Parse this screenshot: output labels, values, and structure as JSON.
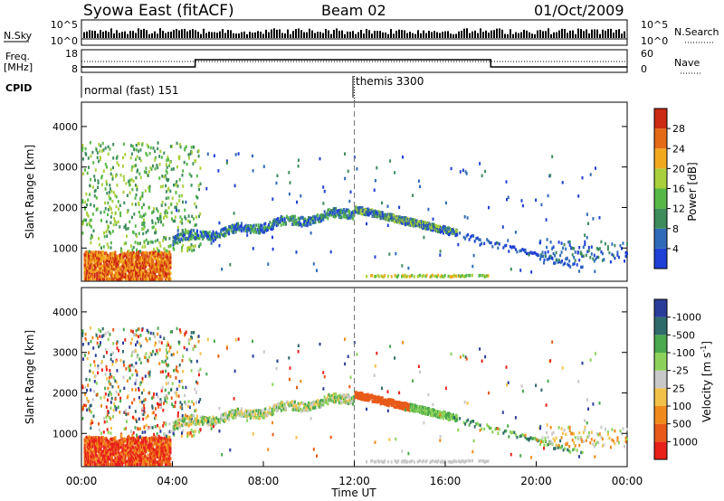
{
  "header": {
    "title": "Syowa East (fitACF)",
    "beam": "Beam 02",
    "date": "01/Oct/2009"
  },
  "strips": {
    "nsky_label": "N.Sky",
    "nsky_ticks": [
      "10^5",
      "10^0"
    ],
    "nsearch_label": "N.Search",
    "nsearch_ticks": [
      "10^5",
      "10^0"
    ],
    "freq_label_1": "Freq.",
    "freq_label_2": "[MHz]",
    "freq_ticks": [
      "18",
      "8"
    ],
    "nave_label": "Nave",
    "nave_ticks": [
      "60",
      "0"
    ],
    "cpid_label": "CPID",
    "cpid_modes": [
      "normal (fast) 151",
      "themis 3300"
    ]
  },
  "colors": {
    "power": [
      "#1f3fd6",
      "#2f6ab8",
      "#3c8c5c",
      "#57b848",
      "#a9cf3a",
      "#f2a91e",
      "#e46a16",
      "#cc2a12"
    ],
    "velocity": [
      "#e8201a",
      "#e85a18",
      "#f08a1a",
      "#f2c248",
      "#c8c8c8",
      "#8cd25a",
      "#4aa84e",
      "#2f6a6a",
      "#2a3c9a"
    ]
  },
  "chart_data": [
    {
      "type": "heatmap",
      "quantity": "Power",
      "ylabel": "Slant Range [km]",
      "yticks": [
        "1000",
        "2000",
        "3000",
        "4000"
      ],
      "ylim": [
        180,
        4600
      ],
      "xlim": [
        0,
        24
      ],
      "colorbar_label": "Power [dB]",
      "colorbar_ticks": [
        "4",
        "8",
        "12",
        "16",
        "20",
        "24",
        "28"
      ],
      "colorbar_range": [
        0,
        32
      ]
    },
    {
      "type": "heatmap",
      "quantity": "Velocity",
      "ylabel": "Slant Range [km]",
      "yticks": [
        "1000",
        "2000",
        "3000",
        "4000"
      ],
      "ylim": [
        180,
        4600
      ],
      "xlim": [
        0,
        24
      ],
      "colorbar_label": "Velocity [m s",
      "colorbar_exponent": "-1",
      "colorbar_unit_close": "]",
      "colorbar_ticks": [
        "-1000",
        "-500",
        "-100",
        "-25",
        "25",
        "100",
        "500",
        "1000"
      ]
    }
  ],
  "xaxis": {
    "label": "Time UT",
    "ticks": [
      "00:00",
      "04:00",
      "08:00",
      "12:00",
      "16:00",
      "20:00",
      "00:00"
    ]
  }
}
